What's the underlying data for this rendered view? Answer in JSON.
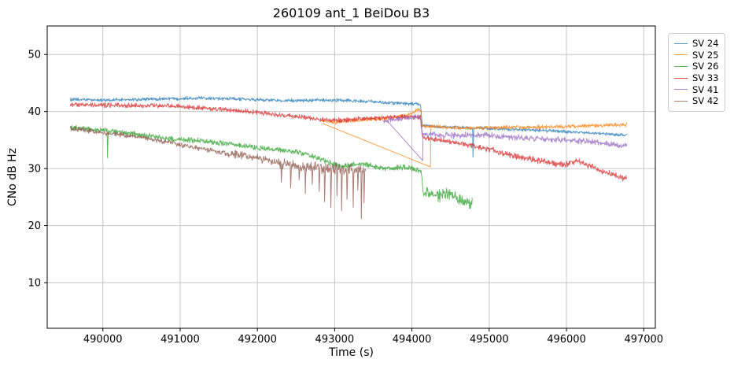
{
  "figure": {
    "background": "#ffffff",
    "grid_color": "#c6c6c6",
    "spine_color": "#000000",
    "tick_color": "#000000",
    "text_color": "#000000"
  },
  "chart_data": {
    "type": "line",
    "title": "260109 ant_1 BeiDou B3",
    "xlabel": "Time (s)",
    "ylabel": "CNo dB Hz",
    "xlim": [
      489280,
      497150
    ],
    "ylim": [
      2,
      55
    ],
    "xticks": [
      490000,
      491000,
      492000,
      493000,
      494000,
      495000,
      496000,
      497000
    ],
    "yticks": [
      10,
      20,
      30,
      40,
      50
    ],
    "grid": true,
    "line_alpha": 0.75,
    "sample_step": 5,
    "legend": {
      "position": "outside-upper-right",
      "entries": [
        "SV 24",
        "SV 25",
        "SV 26",
        "SV 33",
        "SV 41",
        "SV 42"
      ]
    },
    "series": [
      {
        "name": "SV 24",
        "color": "#1f77b4",
        "noise": 0.35,
        "anchors": [
          [
            489580,
            42.1
          ],
          [
            490100,
            42.0
          ],
          [
            490700,
            42.2
          ],
          [
            491300,
            42.4
          ],
          [
            491900,
            42.1
          ],
          [
            492500,
            41.9
          ],
          [
            493100,
            42.0
          ],
          [
            493600,
            41.6
          ],
          [
            493900,
            41.4
          ],
          [
            494110,
            41.3
          ],
          [
            494135,
            37.5
          ],
          [
            494400,
            37.3
          ],
          [
            494800,
            37.1
          ],
          [
            495300,
            36.9
          ],
          [
            495800,
            36.6
          ],
          [
            496300,
            36.3
          ],
          [
            496780,
            35.8
          ]
        ],
        "spikes": [
          [
            494790,
            32.0
          ]
        ]
      },
      {
        "name": "SV 25",
        "color": "#ff7f0e",
        "noise": 0.4,
        "anchors": [
          [
            492830,
            38.4
          ],
          [
            493000,
            38.1
          ],
          [
            493300,
            38.5
          ],
          [
            493700,
            38.8
          ],
          [
            493950,
            39.4
          ],
          [
            494060,
            40.2
          ],
          [
            494115,
            40.3
          ],
          [
            494130,
            37.4
          ],
          [
            494700,
            37.1
          ],
          [
            495200,
            37.2
          ],
          [
            495700,
            37.3
          ],
          [
            496100,
            37.4
          ],
          [
            496500,
            37.6
          ],
          [
            496780,
            37.7
          ]
        ],
        "artifacts": [
          [
            [
              492845,
              37.9
            ],
            [
              494240,
              30.3
            ],
            [
              494243,
              37.0
            ]
          ]
        ]
      },
      {
        "name": "SV 26",
        "color": "#2ca02c",
        "noise": 0.55,
        "noise_segments": [
          [
            494140,
            494780,
            1.3
          ]
        ],
        "anchors": [
          [
            489580,
            37.2
          ],
          [
            490050,
            36.6
          ],
          [
            490400,
            36.1
          ],
          [
            490800,
            35.3
          ],
          [
            491200,
            34.9
          ],
          [
            491600,
            34.4
          ],
          [
            492000,
            33.6
          ],
          [
            492300,
            33.2
          ],
          [
            492550,
            32.9
          ],
          [
            492800,
            31.7
          ],
          [
            493070,
            30.4
          ],
          [
            493320,
            30.8
          ],
          [
            493650,
            30.1
          ],
          [
            493950,
            30.2
          ],
          [
            494120,
            29.6
          ],
          [
            494145,
            25.8
          ],
          [
            494300,
            25.2
          ],
          [
            494470,
            25.7
          ],
          [
            494650,
            24.2
          ],
          [
            494780,
            23.8
          ]
        ],
        "spikes": [
          [
            490060,
            31.9
          ]
        ]
      },
      {
        "name": "SV 33",
        "color": "#d62728",
        "noise": 0.5,
        "noise_segments": [
          [
            495000,
            496780,
            0.65
          ]
        ],
        "anchors": [
          [
            489580,
            41.2
          ],
          [
            490200,
            41.1
          ],
          [
            490900,
            41.0
          ],
          [
            491500,
            40.4
          ],
          [
            492100,
            39.7
          ],
          [
            492700,
            38.8
          ],
          [
            493000,
            38.4
          ],
          [
            493400,
            38.8
          ],
          [
            493800,
            39.0
          ],
          [
            494110,
            39.0
          ],
          [
            494135,
            35.4
          ],
          [
            494500,
            34.7
          ],
          [
            495000,
            33.4
          ],
          [
            495430,
            31.9
          ],
          [
            495700,
            31.3
          ],
          [
            495950,
            30.6
          ],
          [
            496150,
            31.3
          ],
          [
            496450,
            29.6
          ],
          [
            496650,
            28.7
          ],
          [
            496780,
            28.2
          ]
        ]
      },
      {
        "name": "SV 41",
        "color": "#9467bd",
        "noise": 0.6,
        "anchors": [
          [
            493630,
            38.4
          ],
          [
            493850,
            38.7
          ],
          [
            494000,
            39.0
          ],
          [
            494110,
            39.1
          ],
          [
            494135,
            36.1
          ],
          [
            494500,
            35.8
          ],
          [
            494900,
            35.9
          ],
          [
            495300,
            35.5
          ],
          [
            495700,
            35.2
          ],
          [
            496100,
            34.9
          ],
          [
            496400,
            34.6
          ],
          [
            496780,
            33.9
          ]
        ],
        "artifacts": [
          [
            [
              493690,
              38.2
            ],
            [
              494140,
              31.4
            ],
            [
              494143,
              35.8
            ]
          ]
        ]
      },
      {
        "name": "SV 42",
        "color": "#8c564b",
        "noise": 0.5,
        "noise_segments": [
          [
            491600,
            492250,
            0.85
          ],
          [
            492250,
            493400,
            1.15
          ]
        ],
        "anchors": [
          [
            489580,
            37.0
          ],
          [
            490000,
            36.3
          ],
          [
            490500,
            35.5
          ],
          [
            491000,
            34.2
          ],
          [
            491500,
            32.9
          ],
          [
            492000,
            31.8
          ],
          [
            492400,
            30.6
          ],
          [
            492800,
            30.1
          ],
          [
            493100,
            29.9
          ],
          [
            493400,
            29.6
          ]
        ],
        "spikes": [
          [
            492310,
            27.6
          ],
          [
            492430,
            26.6
          ],
          [
            492540,
            28.0
          ],
          [
            492620,
            25.6
          ],
          [
            492710,
            27.2
          ],
          [
            492800,
            26.0
          ],
          [
            492870,
            24.2
          ],
          [
            492950,
            23.2
          ],
          [
            493030,
            25.2
          ],
          [
            493090,
            22.6
          ],
          [
            493160,
            24.6
          ],
          [
            493240,
            23.2
          ],
          [
            493300,
            26.2
          ],
          [
            493345,
            21.2
          ],
          [
            493380,
            24.0
          ]
        ]
      }
    ]
  }
}
